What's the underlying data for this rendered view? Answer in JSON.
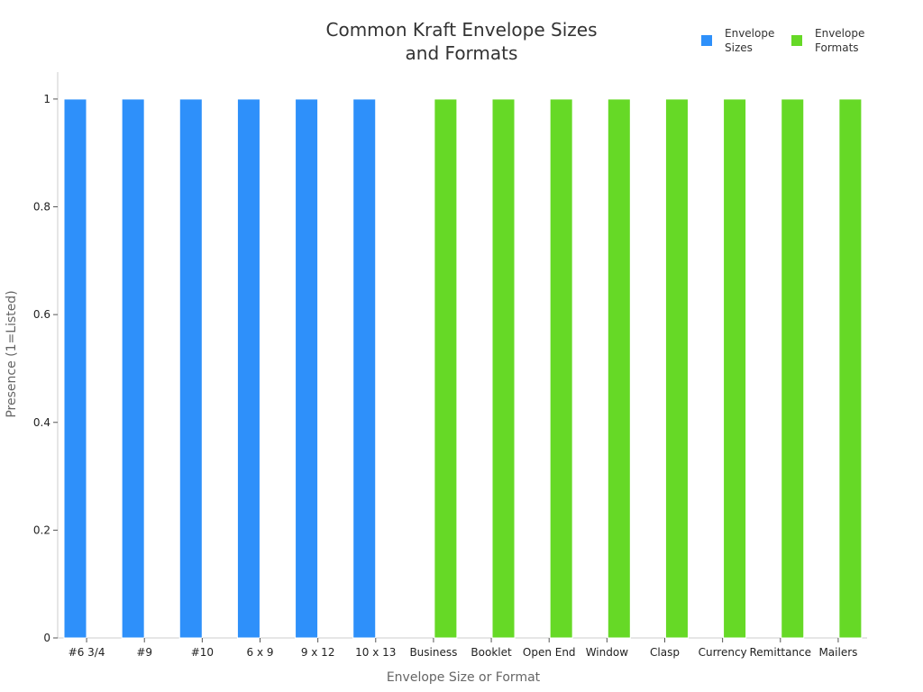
{
  "chart_data": {
    "type": "bar",
    "title": [
      "Common Kraft Envelope Sizes",
      "and Formats"
    ],
    "xlabel": "Envelope Size or Format",
    "ylabel": "Presence (1=Listed)",
    "ylim": [
      0,
      1.05
    ],
    "yticks": [
      0,
      0.2,
      0.4,
      0.6,
      0.8,
      1
    ],
    "ytick_labels": [
      "0",
      "0.2",
      "0.4",
      "0.6",
      "0.8",
      "1"
    ],
    "grid": false,
    "legend_position": "top-right",
    "categories": [
      "#6 3/4",
      "#9",
      "#10",
      "6 x 9",
      "9 x 12",
      "10 x 13",
      "Business",
      "Booklet",
      "Open End",
      "Window",
      "Clasp",
      "Currency",
      "Remittance",
      "Mailers"
    ],
    "series": [
      {
        "name": [
          "Envelope",
          "Sizes"
        ],
        "color": "#2e90fa",
        "values": [
          1,
          1,
          1,
          1,
          1,
          1,
          null,
          null,
          null,
          null,
          null,
          null,
          null,
          null
        ]
      },
      {
        "name": [
          "Envelope",
          "Formats"
        ],
        "color": "#66d926",
        "values": [
          null,
          null,
          null,
          null,
          null,
          null,
          1,
          1,
          1,
          1,
          1,
          1,
          1,
          1
        ]
      }
    ]
  }
}
